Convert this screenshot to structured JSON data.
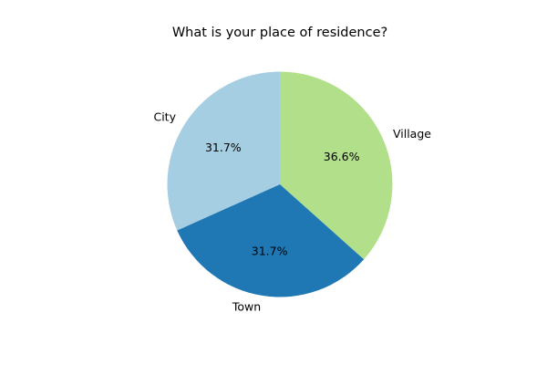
{
  "chart_data": {
    "type": "pie",
    "title": "What is your place of residence?",
    "categories": [
      "Village",
      "Town",
      "City"
    ],
    "values": [
      36.6,
      31.7,
      31.7
    ],
    "value_labels": [
      "36.6%",
      "31.7%",
      "31.7%"
    ],
    "colors": [
      "#b2df8a",
      "#1f78b4",
      "#a6cee3"
    ],
    "start_angle_deg": 90,
    "direction": "clockwise",
    "legend": "none"
  }
}
